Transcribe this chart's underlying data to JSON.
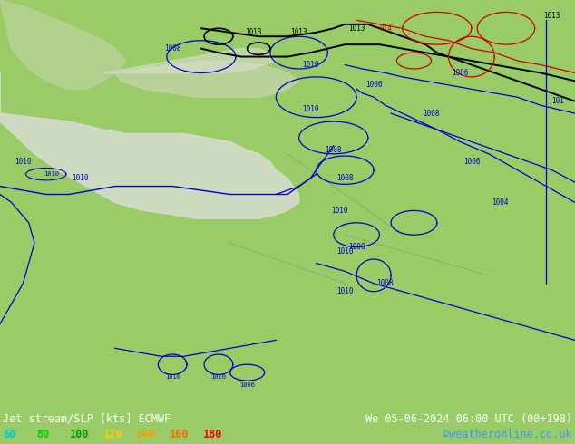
{
  "title_left": "Jet stream/SLP [kts] ECMWF",
  "title_right": "We 05-06-2024 06:00 UTC (00+198)",
  "credit": "©weatheronline.co.uk",
  "legend_values": [
    60,
    80,
    100,
    120,
    140,
    160,
    180
  ],
  "legend_colors": [
    "#00cccc",
    "#00cc00",
    "#009900",
    "#ffcc00",
    "#ff9900",
    "#ff6600",
    "#ff0000"
  ],
  "bg_color": "#99cc66",
  "land_color": "#c8d4b0",
  "sea_color": "#d8ddd0",
  "fig_width": 6.34,
  "fig_height": 4.9,
  "dpi": 100,
  "bottom_bar_color": "#000033",
  "text_color": "#ffffff",
  "credit_color": "#3399ff",
  "blue_contour": "#0000cc",
  "black_contour": "#000000",
  "red_contour": "#cc0000",
  "gray_border": "#888888"
}
